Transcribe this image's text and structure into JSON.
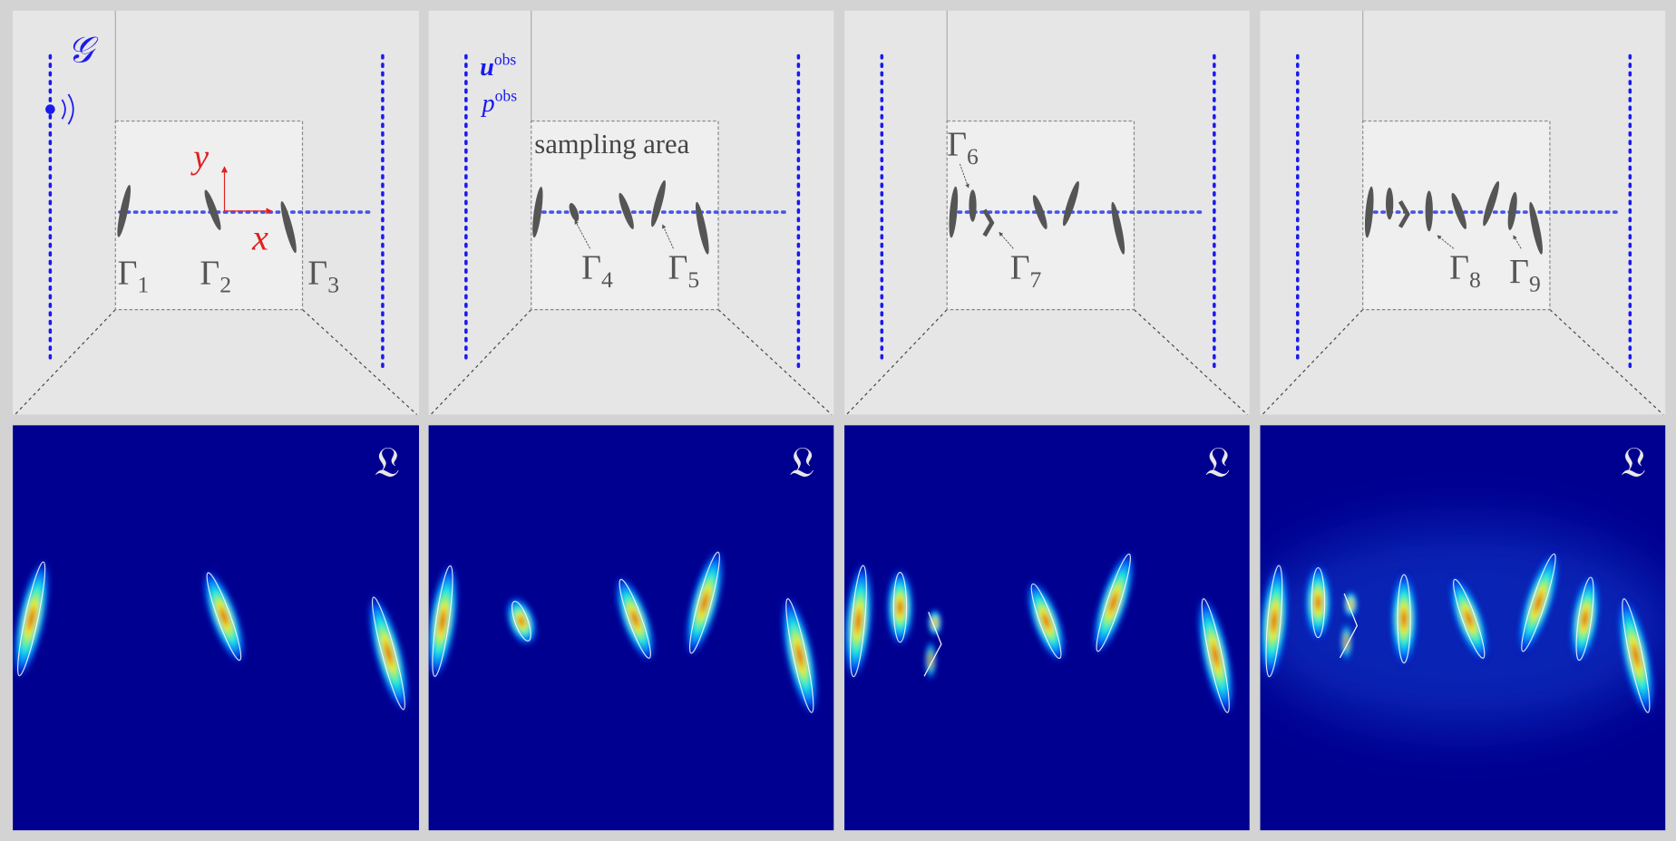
{
  "figure": {
    "source_label": "𝒢",
    "data_labels": [
      {
        "base": "u",
        "sup": "obs"
      },
      {
        "base": "p",
        "sup": "obs"
      }
    ],
    "sampling_area": "sampling area",
    "axes": {
      "x": "x",
      "y": "y"
    },
    "panels": [
      {
        "labels": [
          {
            "base": "Γ",
            "sub": "1"
          },
          {
            "base": "Γ",
            "sub": "2"
          },
          {
            "base": "Γ",
            "sub": "3"
          }
        ],
        "indicator": "𝔏"
      },
      {
        "labels": [
          {
            "base": "Γ",
            "sub": "4"
          },
          {
            "base": "Γ",
            "sub": "5"
          }
        ],
        "indicator": "𝔏"
      },
      {
        "labels": [
          {
            "base": "Γ",
            "sub": "6"
          },
          {
            "base": "Γ",
            "sub": "7"
          }
        ],
        "indicator": "𝔏"
      },
      {
        "labels": [
          {
            "base": "Γ",
            "sub": "8"
          },
          {
            "base": "Γ",
            "sub": "9"
          }
        ],
        "indicator": "𝔏"
      }
    ]
  }
}
